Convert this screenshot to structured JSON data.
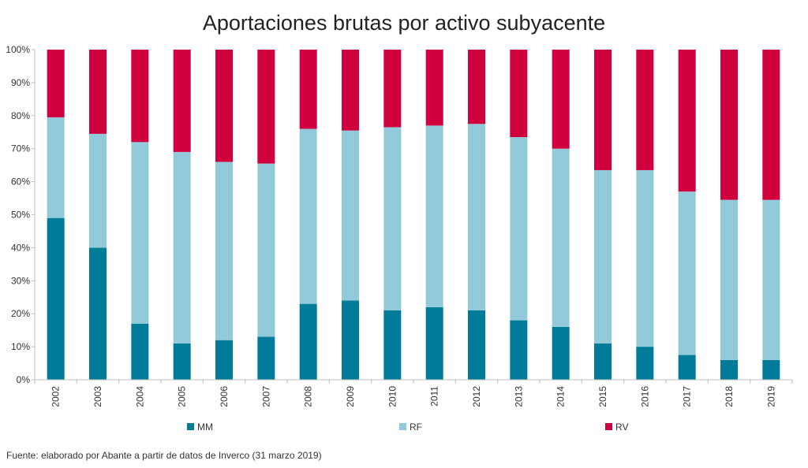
{
  "source_note": "Fuente: elaborado por Abante a partir de datos de Inverco (31 marzo 2019)",
  "chart_data": {
    "type": "bar",
    "stacked": true,
    "percent_stacked": true,
    "title": "Aportaciones brutas por activo subyacente",
    "xlabel": "",
    "ylabel": "",
    "ylim": [
      0,
      100
    ],
    "yticks": [
      "0%",
      "10%",
      "20%",
      "30%",
      "40%",
      "50%",
      "60%",
      "70%",
      "80%",
      "90%",
      "100%"
    ],
    "grid": false,
    "legend_position": "bottom",
    "categories": [
      "2002",
      "2003",
      "2004",
      "2005",
      "2006",
      "2007",
      "2008",
      "2009",
      "2010",
      "2011",
      "2012",
      "2013",
      "2014",
      "2015",
      "2016",
      "2017",
      "2018",
      "2019"
    ],
    "series": [
      {
        "name": "MM",
        "color": "#007c99",
        "values": [
          49,
          40,
          17,
          11,
          12,
          13,
          23,
          24,
          21,
          22,
          21,
          18,
          16,
          11,
          10,
          7.5,
          6,
          6
        ]
      },
      {
        "name": "RF",
        "color": "#93cadb",
        "values": [
          30.5,
          34.5,
          55,
          58,
          54,
          52.5,
          53,
          51.5,
          55.5,
          55,
          56.5,
          55.5,
          54,
          52.5,
          53.5,
          49.5,
          48.5,
          48.5
        ]
      },
      {
        "name": "RV",
        "color": "#d0003f",
        "values": [
          20.5,
          25.5,
          28,
          31,
          34,
          34.5,
          24,
          24.5,
          23.5,
          23,
          22.5,
          26.5,
          30,
          36.5,
          36.5,
          43,
          45.5,
          45.5
        ]
      }
    ]
  }
}
